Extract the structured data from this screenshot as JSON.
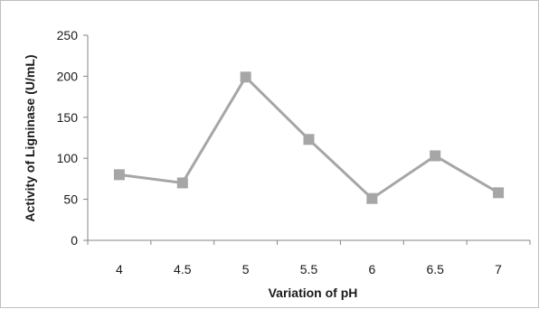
{
  "chart_data": {
    "type": "line",
    "title": "",
    "xlabel": "Variation of pH",
    "ylabel": "Activity of Ligninase (U/mL)",
    "categories": [
      "4",
      "4.5",
      "5",
      "5.5",
      "6",
      "6.5",
      "7"
    ],
    "series": [
      {
        "values": [
          80,
          70,
          199,
          123,
          51,
          103,
          58
        ],
        "color": "#a6a6a6",
        "marker": "square"
      }
    ],
    "ylim": [
      0,
      250
    ],
    "yticks": [
      0,
      50,
      100,
      150,
      200,
      250
    ],
    "grid": false,
    "legend": "none",
    "axis_color": "#868686"
  }
}
